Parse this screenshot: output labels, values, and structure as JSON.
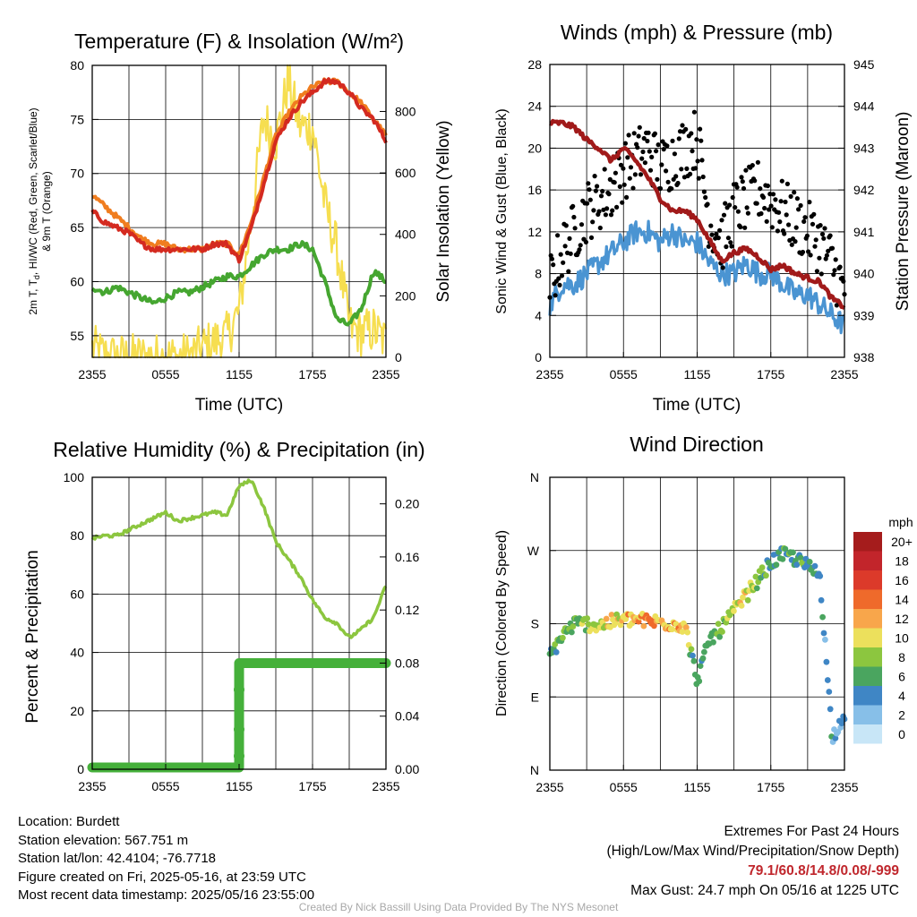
{
  "colors": {
    "red": "#d42a20",
    "orange": "#f07d1f",
    "green": "#45a630",
    "yellow": "#f6de50",
    "blue": "#4a94d2",
    "black": "#000000",
    "maroon": "#a11a1a",
    "rh": "#8cc63f",
    "precip": "#45b03a",
    "extreme_text": "#c0272d",
    "credit_text": "#a8a8a8"
  },
  "x_ticks": [
    "2355",
    "0555",
    "1155",
    "1755",
    "2355"
  ],
  "chart_data": [
    {
      "type": "line",
      "title": "Temperature (F) & Insolation (W/m²)",
      "xlabel": "Time (UTC)",
      "ylabel_main": "2m T, T",
      "ylabel_sub": "d",
      "ylabel_rest": ", HI/WC (Red, Green, Scarlet/Blue)",
      "ylabel_line2": "& 9m T (Orange)",
      "ylabel_right": "Solar Insolation (Yellow)",
      "ylim": [
        53,
        80
      ],
      "yticks": [
        55,
        60,
        65,
        70,
        75,
        80
      ],
      "ylim_right": [
        0,
        950
      ],
      "yticks_right": [
        0,
        200,
        400,
        600,
        800
      ],
      "x_hours": [
        0,
        1,
        2,
        3,
        4,
        5,
        6,
        7,
        8,
        9,
        10,
        11,
        12,
        13,
        14,
        15,
        16,
        17,
        18,
        19,
        20,
        21,
        22,
        23,
        24
      ],
      "series": [
        {
          "name": "2m T",
          "color": "#d42a20",
          "values": [
            66.5,
            65.5,
            65.0,
            64.5,
            63.5,
            63.0,
            63.0,
            63.0,
            63.0,
            63.0,
            63.5,
            63.5,
            62.0,
            65.0,
            69.0,
            73.0,
            75.0,
            76.5,
            77.5,
            78.5,
            78.5,
            77.5,
            76.0,
            75.0,
            73.0
          ]
        },
        {
          "name": "9m T",
          "color": "#f07d1f",
          "values": [
            68.0,
            67.0,
            66.0,
            65.0,
            64.0,
            63.5,
            63.5,
            63.0,
            63.0,
            63.0,
            63.5,
            63.5,
            62.5,
            65.5,
            69.5,
            73.5,
            75.5,
            77.0,
            78.0,
            78.5,
            78.5,
            77.5,
            76.5,
            75.0,
            73.5
          ]
        },
        {
          "name": "Td",
          "color": "#45a630",
          "values": [
            59.5,
            59.0,
            59.5,
            59.0,
            58.5,
            58.0,
            58.5,
            59.0,
            59.0,
            59.5,
            60.0,
            60.5,
            60.5,
            61.5,
            62.5,
            63.0,
            63.0,
            63.5,
            63.0,
            60.0,
            56.5,
            56.0,
            57.5,
            61.0,
            60.0
          ]
        },
        {
          "name": "Solar Insolation",
          "color": "#f6de50",
          "axis": "right",
          "values": [
            30,
            5,
            0,
            0,
            0,
            0,
            0,
            0,
            5,
            30,
            50,
            70,
            150,
            450,
            780,
            700,
            900,
            750,
            750,
            500,
            350,
            100,
            80,
            90,
            50
          ]
        }
      ]
    },
    {
      "type": "scatter",
      "title": "Winds (mph) & Pressure (mb)",
      "xlabel": "Time (UTC)",
      "ylabel": "Sonic Wind & Gust (Blue, Black)",
      "ylabel_right": "Station Pressure (Maroon)",
      "ylim": [
        0,
        28
      ],
      "yticks": [
        0,
        4,
        8,
        12,
        16,
        20,
        24,
        28
      ],
      "ylim_right": [
        938,
        945
      ],
      "yticks_right": [
        938,
        939,
        940,
        941,
        942,
        943,
        944,
        945
      ],
      "x_hours": [
        0,
        1,
        2,
        3,
        4,
        5,
        6,
        7,
        8,
        9,
        10,
        11,
        12,
        13,
        14,
        15,
        16,
        17,
        18,
        19,
        20,
        21,
        22,
        23,
        24
      ],
      "series": [
        {
          "name": "Sonic Wind",
          "color": "#4a94d2",
          "values": [
            5,
            7,
            7,
            8,
            9,
            10,
            11,
            12,
            12,
            11,
            12,
            11,
            11,
            9,
            8,
            8,
            9,
            8,
            8,
            7,
            6,
            6,
            5,
            4,
            3
          ]
        },
        {
          "name": "Gust",
          "color": "#000000",
          "values": [
            7,
            10,
            12,
            14,
            15,
            16,
            18,
            19,
            20,
            18,
            19,
            20,
            21,
            13,
            11,
            14,
            15,
            16,
            15,
            14,
            13,
            12,
            11,
            9,
            6
          ]
        },
        {
          "name": "Station Pressure",
          "color": "#a11a1a",
          "axis": "right",
          "values": [
            943.6,
            943.6,
            943.5,
            943.2,
            943.0,
            942.7,
            943.0,
            942.7,
            942.3,
            941.8,
            941.5,
            941.5,
            941.3,
            940.8,
            940.3,
            940.5,
            940.6,
            940.4,
            940.1,
            940.2,
            940.0,
            939.9,
            939.8,
            939.4,
            939.2
          ]
        }
      ]
    },
    {
      "type": "line",
      "title": "Relative Humidity (%) & Precipitation (in)",
      "xlabel": "",
      "ylabel": "Percent & Precipitation",
      "ylim": [
        0,
        100
      ],
      "yticks": [
        0,
        20,
        40,
        60,
        80,
        100
      ],
      "ylim_right": [
        0,
        0.22
      ],
      "yticks_right": [
        "0.00",
        "0.04",
        "0.08",
        "0.12",
        "0.16",
        "0.20"
      ],
      "x_hours": [
        0,
        1,
        2,
        3,
        4,
        5,
        6,
        7,
        8,
        9,
        10,
        11,
        12,
        13,
        14,
        15,
        16,
        17,
        18,
        19,
        20,
        21,
        22,
        23,
        24
      ],
      "series": [
        {
          "name": "Relative Humidity",
          "color": "#8cc63f",
          "values": [
            79,
            80,
            80,
            82,
            84,
            86,
            88,
            85,
            86,
            87,
            88,
            87,
            97,
            99,
            90,
            78,
            72,
            66,
            58,
            52,
            50,
            45,
            48,
            52,
            63
          ]
        },
        {
          "name": "Precipitation",
          "color": "#45b03a",
          "axis": "right",
          "values": [
            0,
            0,
            0,
            0,
            0,
            0,
            0,
            0,
            0,
            0,
            0,
            0,
            0.08,
            0.08,
            0.08,
            0.08,
            0.08,
            0.08,
            0.08,
            0.08,
            0.08,
            0.08,
            0.08,
            0.08,
            0.08
          ]
        }
      ]
    },
    {
      "type": "scatter",
      "title": "Wind Direction",
      "xlabel": "",
      "ylabel": "Direction (Colored By Speed)",
      "yticks": [
        "N",
        "E",
        "S",
        "W",
        "N"
      ],
      "ylim": [
        0,
        360
      ],
      "x_hours": [
        0,
        1,
        2,
        3,
        4,
        5,
        6,
        7,
        8,
        9,
        10,
        11,
        12,
        13,
        14,
        15,
        16,
        17,
        18,
        19,
        20,
        21,
        22,
        23,
        24
      ],
      "direction_values": [
        140,
        165,
        180,
        180,
        178,
        182,
        185,
        185,
        183,
        182,
        180,
        178,
        110,
        160,
        175,
        195,
        215,
        235,
        255,
        265,
        260,
        250,
        240,
        40,
        70
      ],
      "speed_values": [
        5,
        7,
        7,
        8,
        9,
        10,
        11,
        12,
        13,
        11,
        12,
        11,
        4,
        7,
        8,
        9,
        10,
        8,
        5,
        6,
        5,
        6,
        5,
        3,
        2
      ],
      "legend": {
        "title": "mph",
        "labels": [
          "20+",
          "18",
          "16",
          "14",
          "12",
          "10",
          "8",
          "6",
          "4",
          "2",
          "0"
        ],
        "colors": [
          "#a51c1c",
          "#c2252b",
          "#dc3a2a",
          "#ef6a2b",
          "#f8a64b",
          "#ece05c",
          "#8cc63f",
          "#4aa55f",
          "#3f86c5",
          "#87bfe8",
          "#c8e6f7"
        ]
      }
    }
  ],
  "info": {
    "location": "Location: Burdett",
    "elevation": "Station elevation: 567.751 m",
    "latlon": "Station lat/lon: 42.4104; -76.7718",
    "created": "Figure created on Fri, 2025-05-16, at 23:59 UTC",
    "recent": "Most recent data timestamp: 2025/05/16 23:55:00"
  },
  "extremes": {
    "title": "Extremes For Past 24 Hours",
    "subtitle": "(High/Low/Max Wind/Precipitation/Snow Depth)",
    "values": "79.1/60.8/14.8/0.08/-999",
    "gust": "Max Gust: 24.7 mph On 05/16 at 1225 UTC"
  },
  "credit": "Created By Nick Bassill Using Data Provided By The NYS Mesonet"
}
